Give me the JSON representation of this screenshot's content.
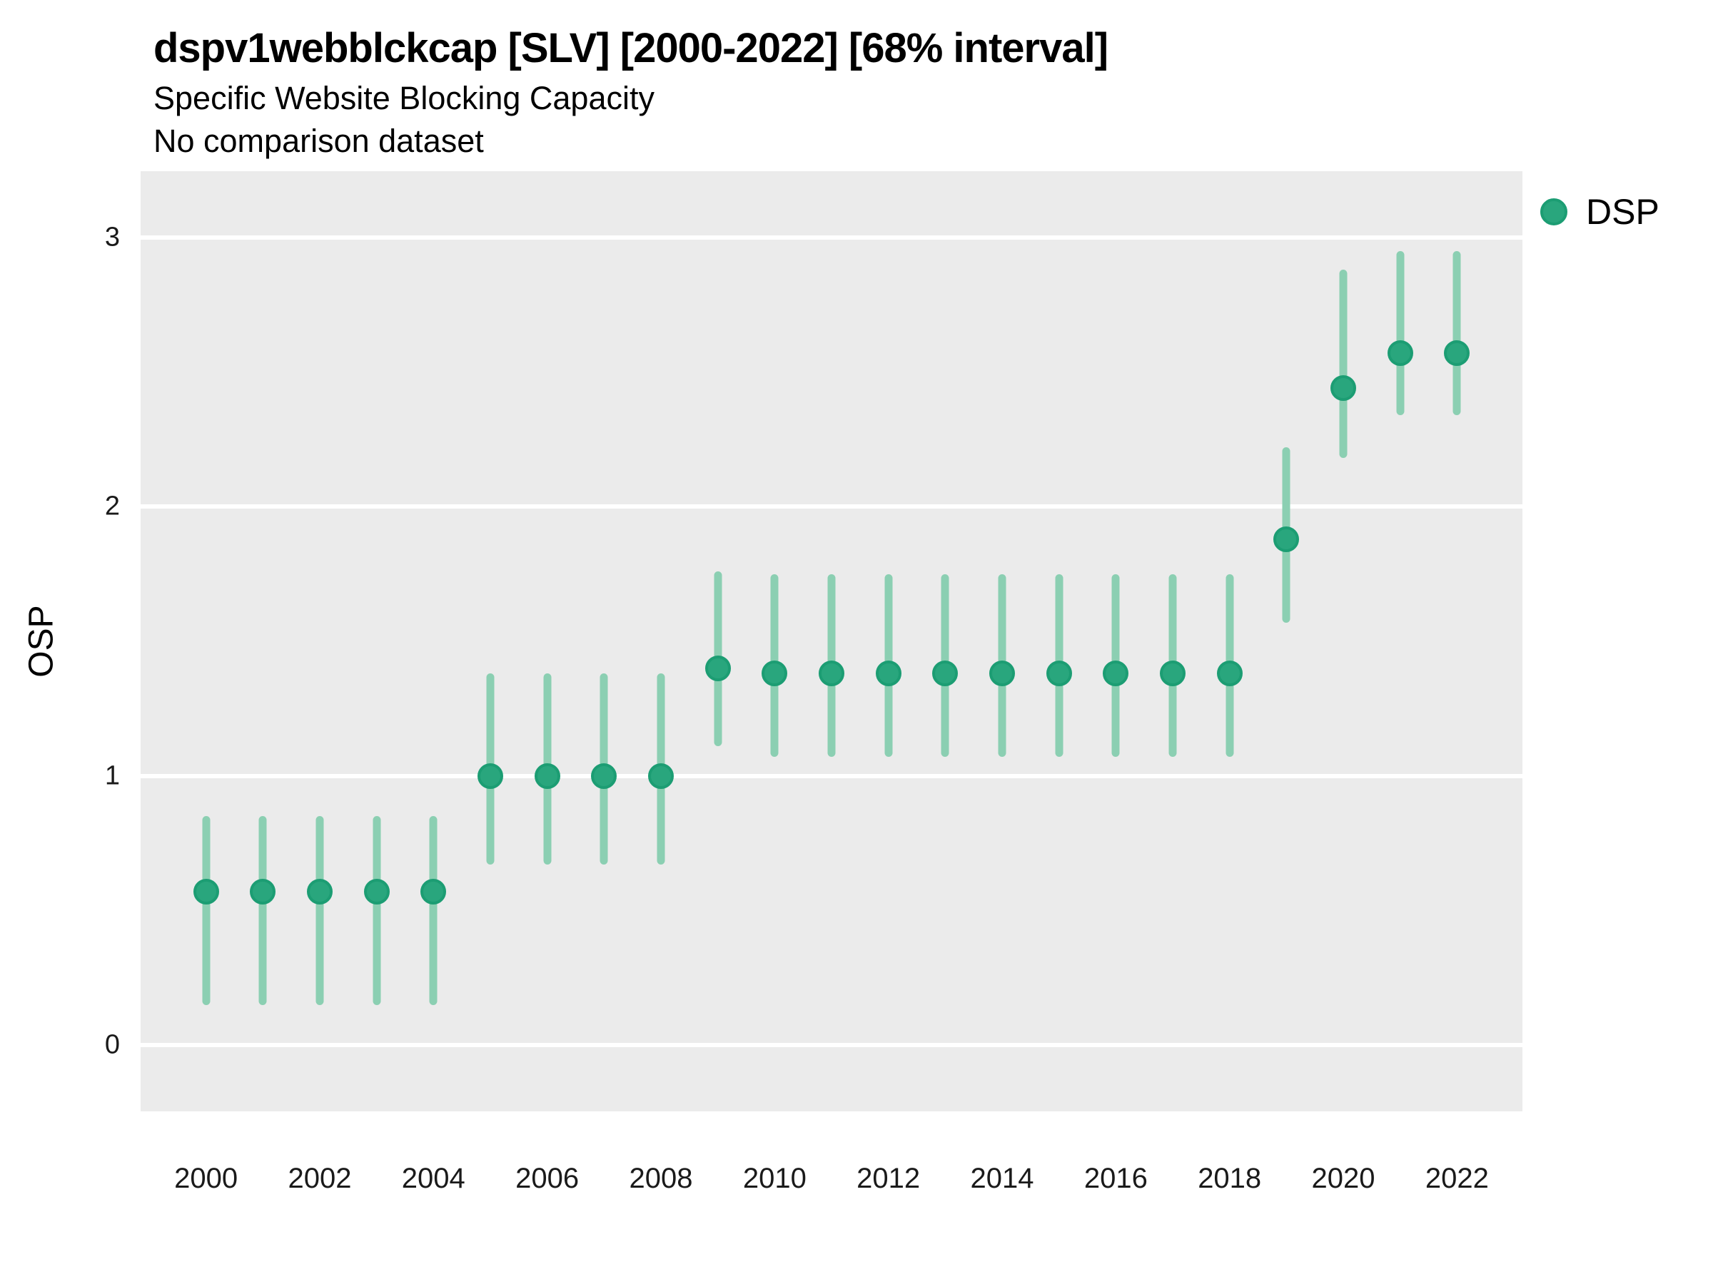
{
  "header": {
    "title": "dspv1webblckcap [SLV] [2000-2022] [68% interval]",
    "subtitle": "Specific Website Blocking Capacity",
    "subtitle2": "No comparison dataset"
  },
  "legend": {
    "label": "DSP",
    "position": "right",
    "dot_fill": "#29A67D",
    "dot_border": "#1C9D73"
  },
  "colors": {
    "panel_background": "#EBEBEB",
    "gridline": "#FFFFFF",
    "interval_bar": "#8BCFB2",
    "point_fill": "#29A67D",
    "point_border": "#1C9D73",
    "text": "#000000",
    "tick_text": "#1a1a1a"
  },
  "y_axis": {
    "title": "OSP",
    "tick_labels": [
      "0",
      "1",
      "2",
      "3"
    ],
    "tick_values": [
      0,
      1,
      2,
      3
    ]
  },
  "x_axis": {
    "tick_labels": [
      "2000",
      "2002",
      "2004",
      "2006",
      "2008",
      "2010",
      "2012",
      "2014",
      "2016",
      "2018",
      "2020",
      "2022"
    ],
    "tick_values": [
      2000,
      2002,
      2004,
      2006,
      2008,
      2010,
      2012,
      2014,
      2016,
      2018,
      2020,
      2022
    ]
  },
  "chart_data": {
    "type": "scatter",
    "title": "dspv1webblckcap [SLV] [2000-2022] [68% interval]",
    "subtitle": "Specific Website Blocking Capacity",
    "note": "No comparison dataset",
    "interval_level": "68%",
    "xlabel": "",
    "ylabel": "OSP",
    "xlim": [
      1998.85,
      2023.15
    ],
    "ylim": [
      -0.246,
      3.246
    ],
    "grid": "major-y-only",
    "legend_position": "right",
    "series": [
      {
        "name": "DSP",
        "points": [
          {
            "year": 2000,
            "est": 0.57,
            "lo": 0.15,
            "hi": 0.85
          },
          {
            "year": 2001,
            "est": 0.57,
            "lo": 0.15,
            "hi": 0.85
          },
          {
            "year": 2002,
            "est": 0.57,
            "lo": 0.15,
            "hi": 0.85
          },
          {
            "year": 2003,
            "est": 0.57,
            "lo": 0.15,
            "hi": 0.85
          },
          {
            "year": 2004,
            "est": 0.57,
            "lo": 0.15,
            "hi": 0.85
          },
          {
            "year": 2005,
            "est": 1.0,
            "lo": 0.67,
            "hi": 1.38
          },
          {
            "year": 2006,
            "est": 1.0,
            "lo": 0.67,
            "hi": 1.38
          },
          {
            "year": 2007,
            "est": 1.0,
            "lo": 0.67,
            "hi": 1.38
          },
          {
            "year": 2008,
            "est": 1.0,
            "lo": 0.67,
            "hi": 1.38
          },
          {
            "year": 2009,
            "est": 1.4,
            "lo": 1.11,
            "hi": 1.76
          },
          {
            "year": 2010,
            "est": 1.38,
            "lo": 1.07,
            "hi": 1.75
          },
          {
            "year": 2011,
            "est": 1.38,
            "lo": 1.07,
            "hi": 1.75
          },
          {
            "year": 2012,
            "est": 1.38,
            "lo": 1.07,
            "hi": 1.75
          },
          {
            "year": 2013,
            "est": 1.38,
            "lo": 1.07,
            "hi": 1.75
          },
          {
            "year": 2014,
            "est": 1.38,
            "lo": 1.07,
            "hi": 1.75
          },
          {
            "year": 2015,
            "est": 1.38,
            "lo": 1.07,
            "hi": 1.75
          },
          {
            "year": 2016,
            "est": 1.38,
            "lo": 1.07,
            "hi": 1.75
          },
          {
            "year": 2017,
            "est": 1.38,
            "lo": 1.07,
            "hi": 1.75
          },
          {
            "year": 2018,
            "est": 1.38,
            "lo": 1.07,
            "hi": 1.75
          },
          {
            "year": 2019,
            "est": 1.88,
            "lo": 1.57,
            "hi": 2.22
          },
          {
            "year": 2020,
            "est": 2.44,
            "lo": 2.18,
            "hi": 2.88
          },
          {
            "year": 2021,
            "est": 2.57,
            "lo": 2.34,
            "hi": 2.95
          },
          {
            "year": 2022,
            "est": 2.57,
            "lo": 2.34,
            "hi": 2.95
          }
        ]
      }
    ]
  }
}
